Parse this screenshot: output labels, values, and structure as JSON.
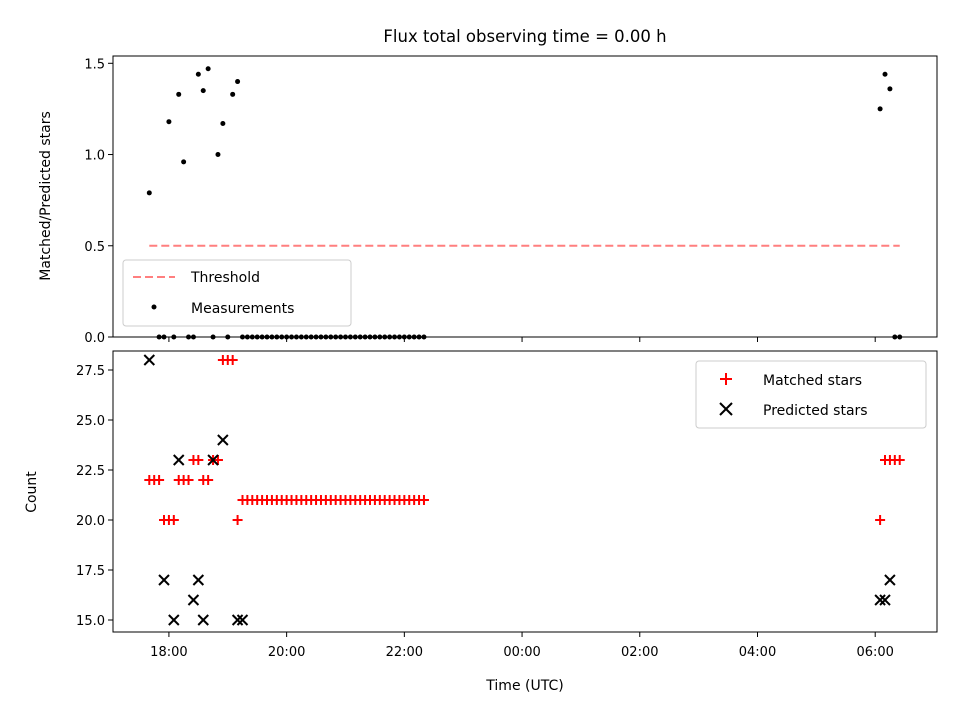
{
  "chart_data": [
    {
      "type": "scatter",
      "title": "Flux total observing time = 0.00 h",
      "xlabel": "",
      "ylabel": "Matched/Predicted stars",
      "ylim": [
        0,
        1.54
      ],
      "xlim": [
        "17:03",
        "07:03"
      ],
      "yticks": [
        "0.0",
        "0.5",
        "1.0",
        "1.5"
      ],
      "legend": "lower-left",
      "series": [
        {
          "name": "Threshold",
          "style": "dashed",
          "color": "#ff7f7f",
          "x": [
            "17:40",
            "06:25"
          ],
          "y": [
            0.5,
            0.5
          ]
        },
        {
          "name": "Measurements",
          "style": "dots",
          "color": "#000000",
          "x": [
            "17:40",
            "17:50",
            "17:55",
            "18:00",
            "18:05",
            "18:10",
            "18:15",
            "18:20",
            "18:25",
            "18:30",
            "18:35",
            "18:40",
            "18:45",
            "18:50",
            "18:55",
            "19:00",
            "19:05",
            "19:10",
            "19:15",
            "19:20",
            "19:25",
            "19:30",
            "19:35",
            "19:40",
            "19:45",
            "19:50",
            "19:55",
            "20:00",
            "20:05",
            "20:10",
            "20:15",
            "20:20",
            "20:25",
            "20:30",
            "20:35",
            "20:40",
            "20:45",
            "20:50",
            "20:55",
            "21:00",
            "21:05",
            "21:10",
            "21:15",
            "21:20",
            "21:25",
            "21:30",
            "21:35",
            "21:40",
            "21:45",
            "21:50",
            "21:55",
            "22:00",
            "22:05",
            "22:10",
            "22:15",
            "22:20",
            "06:05",
            "06:10",
            "06:15",
            "06:20",
            "06:25"
          ],
          "y": [
            0.79,
            0,
            0,
            1.18,
            0,
            1.33,
            0.96,
            0,
            0,
            1.44,
            1.35,
            1.47,
            0,
            1.0,
            1.17,
            0,
            1.33,
            1.4,
            0,
            0,
            0,
            0,
            0,
            0,
            0,
            0,
            0,
            0,
            0,
            0,
            0,
            0,
            0,
            0,
            0,
            0,
            0,
            0,
            0,
            0,
            0,
            0,
            0,
            0,
            0,
            0,
            0,
            0,
            0,
            0,
            0,
            0,
            0,
            0,
            0,
            0,
            1.25,
            1.44,
            1.36,
            0,
            0
          ]
        }
      ]
    },
    {
      "type": "scatter",
      "title": "",
      "xlabel": "Time (UTC)",
      "ylabel": "Count",
      "ylim": [
        14.4,
        28.45
      ],
      "xlim": [
        "17:03",
        "07:03"
      ],
      "xticks": [
        "18:00",
        "20:00",
        "22:00",
        "00:00",
        "02:00",
        "04:00",
        "06:00"
      ],
      "yticks": [
        "15.0",
        "17.5",
        "20.0",
        "22.5",
        "25.0",
        "27.5"
      ],
      "legend": "top-right",
      "series": [
        {
          "name": "Matched stars",
          "marker": "plus",
          "color": "#ff0000",
          "x": [
            "17:40",
            "17:45",
            "17:50",
            "17:55",
            "18:00",
            "18:05",
            "18:10",
            "18:15",
            "18:20",
            "18:25",
            "18:30",
            "18:35",
            "18:40",
            "18:45",
            "18:50",
            "18:55",
            "19:00",
            "19:05",
            "19:10",
            "19:15",
            "19:20",
            "19:25",
            "19:30",
            "19:35",
            "19:40",
            "19:45",
            "19:50",
            "19:55",
            "20:00",
            "20:05",
            "20:10",
            "20:15",
            "20:20",
            "20:25",
            "20:30",
            "20:35",
            "20:40",
            "20:45",
            "20:50",
            "20:55",
            "21:00",
            "21:05",
            "21:10",
            "21:15",
            "21:20",
            "21:25",
            "21:30",
            "21:35",
            "21:40",
            "21:45",
            "21:50",
            "21:55",
            "22:00",
            "22:05",
            "22:10",
            "22:15",
            "22:20",
            "06:05",
            "06:10",
            "06:15",
            "06:20",
            "06:25"
          ],
          "y": [
            22,
            22,
            22,
            20,
            20,
            20,
            22,
            22,
            22,
            23,
            23,
            22,
            22,
            23,
            23,
            28,
            28,
            28,
            20,
            21,
            21,
            21,
            21,
            21,
            21,
            21,
            21,
            21,
            21,
            21,
            21,
            21,
            21,
            21,
            21,
            21,
            21,
            21,
            21,
            21,
            21,
            21,
            21,
            21,
            21,
            21,
            21,
            21,
            21,
            21,
            21,
            21,
            21,
            21,
            21,
            21,
            21,
            20,
            23,
            23,
            23,
            23
          ]
        },
        {
          "name": "Predicted stars",
          "marker": "x",
          "color": "#000000",
          "x": [
            "17:40",
            "17:55",
            "18:05",
            "18:10",
            "18:25",
            "18:30",
            "18:35",
            "18:45",
            "18:55",
            "19:10",
            "19:15",
            "06:05",
            "06:10",
            "06:15"
          ],
          "y": [
            28,
            17,
            15,
            23,
            16,
            17,
            15,
            23,
            24,
            15,
            15,
            16,
            16,
            17
          ]
        }
      ]
    }
  ]
}
